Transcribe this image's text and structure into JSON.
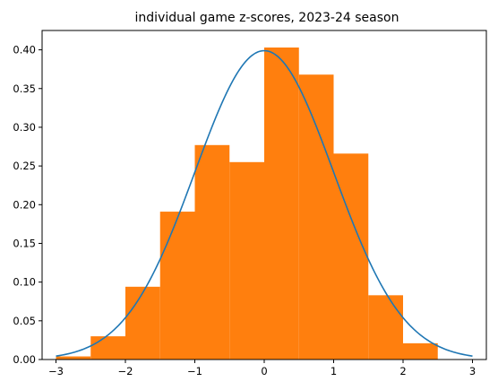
{
  "chart_data": {
    "type": "bar",
    "title": "individual game z-scores, 2023-24 season",
    "xlabel": "",
    "ylabel": "",
    "xlim": [
      -3.2,
      3.2
    ],
    "ylim": [
      0,
      0.425
    ],
    "xticks": [
      -3,
      -2,
      -1,
      0,
      1,
      2,
      3
    ],
    "xtick_labels": [
      "−3",
      "−2",
      "−1",
      "0",
      "1",
      "2",
      "3"
    ],
    "yticks": [
      0.0,
      0.05,
      0.1,
      0.15,
      0.2,
      0.25,
      0.3,
      0.35,
      0.4
    ],
    "ytick_labels": [
      "0.00",
      "0.05",
      "0.10",
      "0.15",
      "0.20",
      "0.25",
      "0.30",
      "0.35",
      "0.40"
    ],
    "grid": false,
    "bins": [
      {
        "x0": -3.0,
        "x1": -2.5,
        "value": 0.004
      },
      {
        "x0": -2.5,
        "x1": -2.0,
        "value": 0.03
      },
      {
        "x0": -2.0,
        "x1": -1.5,
        "value": 0.094
      },
      {
        "x0": -1.5,
        "x1": -1.0,
        "value": 0.191
      },
      {
        "x0": -1.0,
        "x1": -0.5,
        "value": 0.277
      },
      {
        "x0": -0.5,
        "x1": 0.0,
        "value": 0.255
      },
      {
        "x0": 0.0,
        "x1": 0.5,
        "value": 0.403
      },
      {
        "x0": 0.5,
        "x1": 1.0,
        "value": 0.368
      },
      {
        "x0": 1.0,
        "x1": 1.5,
        "value": 0.266
      },
      {
        "x0": 1.5,
        "x1": 2.0,
        "value": 0.083
      },
      {
        "x0": 2.0,
        "x1": 2.5,
        "value": 0.021
      }
    ],
    "curve": {
      "type": "line",
      "description": "standard normal probability density",
      "x_range": [
        -3,
        3
      ],
      "mean": 0,
      "std": 1
    },
    "colors": {
      "bars": "#ff7f0e",
      "curve": "#1f77b4",
      "axes": "#000000"
    }
  }
}
